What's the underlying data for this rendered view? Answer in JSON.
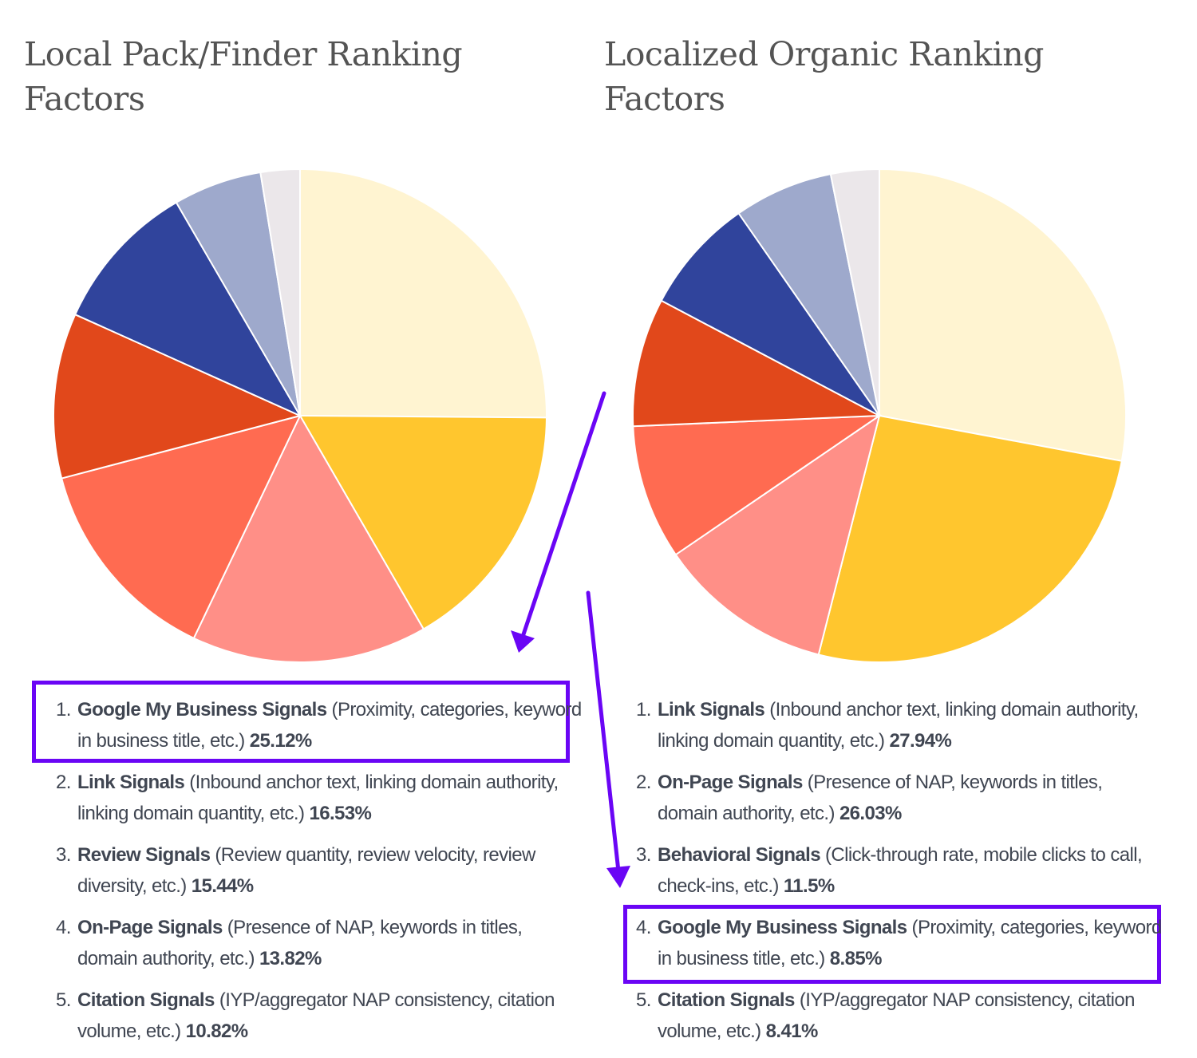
{
  "highlight_color": "#6A05F5",
  "chart_data": [
    {
      "type": "pie",
      "title": "Local Pack/Finder Ranking Factors",
      "labels": [
        "Google My Business Signals",
        "Link Signals",
        "Review Signals",
        "On-Page Signals",
        "Citation Signals",
        "",
        "",
        ""
      ],
      "values": [
        25.12,
        16.53,
        15.44,
        13.82,
        10.82,
        9.9,
        5.8,
        2.57
      ],
      "colors": [
        "#FFF4D1",
        "#FFC62E",
        "#FF8F87",
        "#FF6B51",
        "#E1481B",
        "#30449C",
        "#9EA9CC",
        "#EBE7EA"
      ],
      "direction": "clockwise from top",
      "items": [
        {
          "num": "1.",
          "name": "Google My Business Signals",
          "desc": " (Proximity, categories, keyword in business title, etc.) ",
          "pct": "25.12%"
        },
        {
          "num": "2.",
          "name": "Link Signals",
          "desc": " (Inbound anchor text, linking domain authority, linking domain quantity, etc.) ",
          "pct": "16.53%"
        },
        {
          "num": "3.",
          "name": "Review Signals",
          "desc": " (Review quantity, review velocity, review diversity, etc.) ",
          "pct": "15.44%"
        },
        {
          "num": "4.",
          "name": "On-Page Signals",
          "desc": " (Presence of NAP, keywords in titles, domain authority, etc.) ",
          "pct": "13.82%"
        },
        {
          "num": "5.",
          "name": "Citation Signals",
          "desc": " (IYP/aggregator NAP consistency, citation volume, etc.) ",
          "pct": "10.82%"
        }
      ]
    },
    {
      "type": "pie",
      "title": "Localized Organic Ranking Factors",
      "labels": [
        "Link Signals",
        "On-Page Signals",
        "Behavioral Signals",
        "Google My Business Signals",
        "Citation Signals",
        "",
        "",
        ""
      ],
      "values": [
        27.94,
        26.03,
        11.5,
        8.85,
        8.41,
        7.6,
        6.5,
        3.17
      ],
      "colors": [
        "#FFF4D1",
        "#FFC62E",
        "#FF8F87",
        "#FF6B51",
        "#E1481B",
        "#30449C",
        "#9EA9CC",
        "#EBE7EA"
      ],
      "direction": "clockwise from top",
      "items": [
        {
          "num": "1.",
          "name": "Link Signals",
          "desc": " (Inbound anchor text, linking domain authority, linking domain quantity, etc.) ",
          "pct": "27.94%"
        },
        {
          "num": "2.",
          "name": "On-Page Signals",
          "desc": " (Presence of NAP, keywords in titles, domain authority, etc.) ",
          "pct": "26.03%"
        },
        {
          "num": "3.",
          "name": "Behavioral Signals",
          "desc": " (Click-through rate, mobile clicks to call, check-ins, etc.) ",
          "pct": "11.5%"
        },
        {
          "num": "4.",
          "name": "Google My Business Signals",
          "desc": " (Proximity, categories, keyword in business title, etc.) ",
          "pct": "8.85%"
        },
        {
          "num": "5.",
          "name": "Citation Signals",
          "desc": " (IYP/aggregator NAP consistency, citation volume, etc.) ",
          "pct": "8.41%"
        }
      ]
    }
  ]
}
